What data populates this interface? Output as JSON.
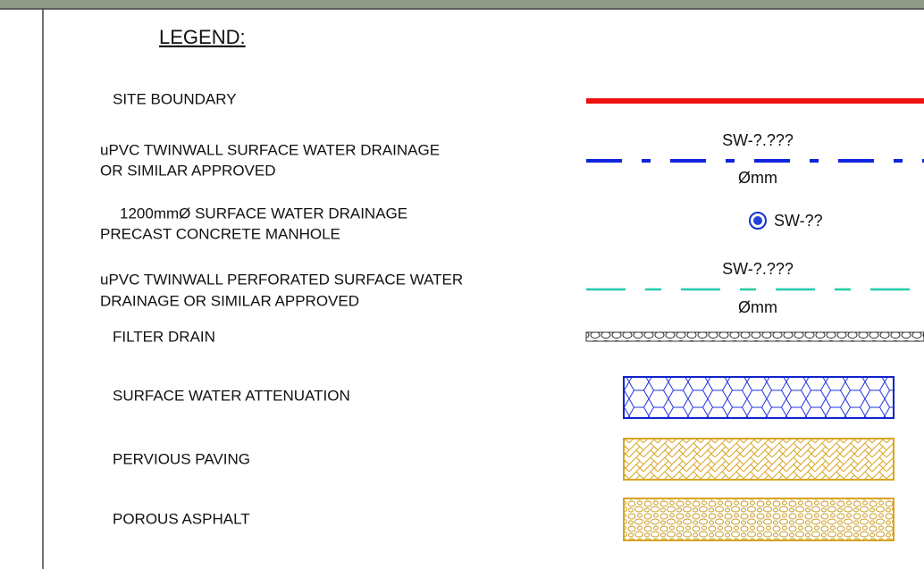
{
  "legend": {
    "title": "LEGEND:",
    "items": [
      {
        "lines": [
          "SITE BOUNDARY"
        ]
      },
      {
        "lines": [
          "uPVC TWINWALL SURFACE WATER DRAINAGE",
          "OR SIMILAR APPROVED"
        ],
        "ref": "SW-?.???",
        "size": "Ømm"
      },
      {
        "lines": [
          "1200mmØ SURFACE WATER DRAINAGE",
          "PRECAST CONCRETE MANHOLE"
        ],
        "ref": "SW-??"
      },
      {
        "lines": [
          "uPVC TWINWALL PERFORATED SURFACE WATER",
          "DRAINAGE OR SIMILAR APPROVED"
        ],
        "ref": "SW-?.???",
        "size": "Ømm"
      },
      {
        "lines": [
          "FILTER DRAIN"
        ]
      },
      {
        "lines": [
          "SURFACE WATER ATTENUATION"
        ]
      },
      {
        "lines": [
          "PERVIOUS PAVING"
        ]
      },
      {
        "lines": [
          "POROUS ASPHALT"
        ]
      }
    ]
  }
}
